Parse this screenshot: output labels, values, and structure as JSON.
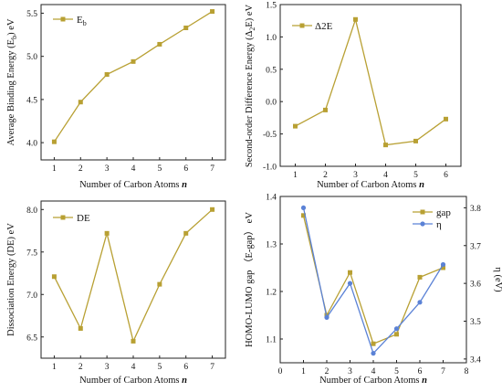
{
  "chart_data": [
    {
      "type": "line",
      "x": [
        1,
        2,
        3,
        4,
        5,
        6,
        7
      ],
      "series": [
        {
          "name": "E",
          "name_subscript": "b",
          "values": [
            4.01,
            4.47,
            4.79,
            4.94,
            5.14,
            5.33,
            5.52
          ],
          "color": "#b8a033"
        }
      ],
      "xlabel": "Number of Carbon Atoms",
      "xlabel_var": "n",
      "ylabel": "Average Binding Energy (E",
      "ylabel_sub": "b",
      "ylabel_tail": ") eV",
      "xlim": [
        0.5,
        7.5
      ],
      "ylim": [
        3.8,
        5.6
      ],
      "xticks": [
        "1",
        "2",
        "3",
        "4",
        "5",
        "6",
        "7"
      ],
      "yticks": [
        "4.0",
        "4.5",
        "5.0",
        "5.5"
      ],
      "legend_position": "top-left",
      "grid": false
    },
    {
      "type": "line",
      "x": [
        1,
        2,
        3,
        4,
        5,
        6
      ],
      "series": [
        {
          "name": "Δ2E",
          "values": [
            -0.38,
            -0.13,
            1.27,
            -0.67,
            -0.61,
            -0.27
          ],
          "color": "#b8a033"
        }
      ],
      "xlabel": "Number of Carbon Atoms",
      "xlabel_var": "n",
      "ylabel": "Second-order Difference Energy (Δ",
      "ylabel_sub": "2",
      "ylabel_tail": "E) eV",
      "xlim": [
        0.5,
        6.5
      ],
      "ylim": [
        -1.0,
        1.5
      ],
      "xticks": [
        "1",
        "2",
        "3",
        "4",
        "5",
        "6"
      ],
      "yticks": [
        "-1.0",
        "-0.5",
        "0.0",
        "0.5",
        "1.0",
        "1.5"
      ],
      "legend_position": "top-left",
      "grid": false
    },
    {
      "type": "line",
      "x": [
        1,
        2,
        3,
        4,
        5,
        6,
        7
      ],
      "series": [
        {
          "name": "DE",
          "values": [
            7.21,
            6.6,
            7.72,
            6.45,
            7.12,
            7.72,
            8.0
          ],
          "color": "#b8a033"
        }
      ],
      "xlabel": "Number of Carbon Atoms",
      "xlabel_var": "n",
      "ylabel": "Dissociation Energy (DE) eV",
      "xlim": [
        0.5,
        7.5
      ],
      "ylim": [
        6.25,
        8.1
      ],
      "xticks": [
        "1",
        "2",
        "3",
        "4",
        "5",
        "6",
        "7"
      ],
      "yticks": [
        "6.5",
        "7.0",
        "7.5",
        "8.0"
      ],
      "legend_position": "top-left",
      "grid": false
    },
    {
      "type": "line",
      "x": [
        1,
        2,
        3,
        4,
        5,
        6,
        7
      ],
      "series": [
        {
          "name": "gap",
          "axis": "left",
          "values": [
            1.36,
            1.15,
            1.24,
            1.09,
            1.11,
            1.23,
            1.25
          ],
          "color": "#b8a033"
        },
        {
          "name": "η",
          "axis": "right",
          "values": [
            3.8,
            3.51,
            3.6,
            3.415,
            3.48,
            3.55,
            3.65
          ],
          "color": "#5b82d6"
        }
      ],
      "xlabel": "Number of Carbon Atoms",
      "xlabel_var": "n",
      "ylabel": "HOMO-LUMO gap （E-gap） eV",
      "ylabel_right": "η (eV)",
      "xlim": [
        0,
        8
      ],
      "ylim": [
        1.05,
        1.4
      ],
      "ylim_right": [
        3.39,
        3.83
      ],
      "xticks": [
        "0",
        "1",
        "2",
        "3",
        "4",
        "5",
        "6",
        "7",
        "8"
      ],
      "yticks": [
        "1.1",
        "1.2",
        "1.3",
        "1.4"
      ],
      "yticks_right": [
        "3.4",
        "3.5",
        "3.6",
        "3.7",
        "3.8"
      ],
      "legend_position": "top-right",
      "grid": false
    }
  ]
}
